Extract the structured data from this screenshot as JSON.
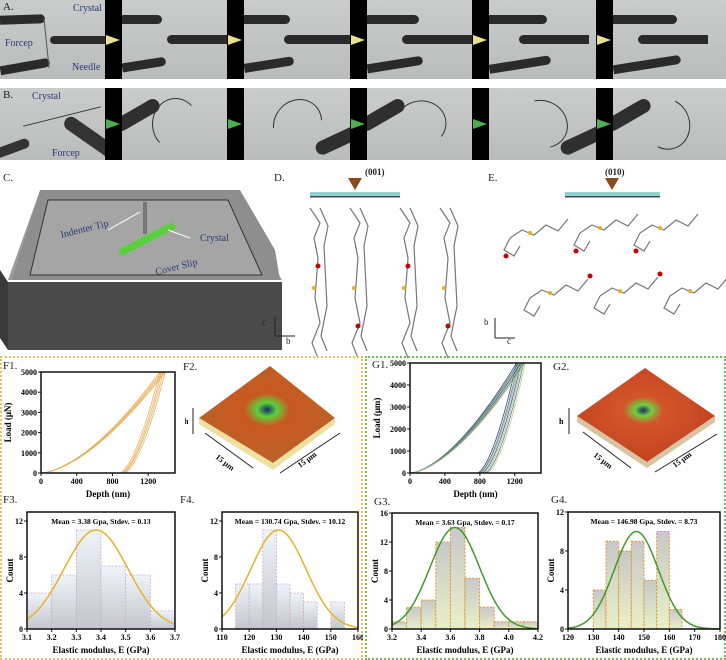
{
  "panels": {
    "A": {
      "label": "A.",
      "crystal": "Crystal",
      "forcep": "Forcep",
      "needle": "Needle",
      "arrow_color": "#e8e08a"
    },
    "B": {
      "label": "B.",
      "crystal": "Crystal",
      "forcep": "Forcep",
      "arrow_color": "#4caf50"
    },
    "C": {
      "label": "C.",
      "indenter_tip": "Indenter Tip",
      "crystal": "Crystal",
      "cover_slip": "Cover Slip"
    },
    "D": {
      "label": "D.",
      "face": "(001)",
      "axis1": "c",
      "axis2": "b"
    },
    "E": {
      "label": "E.",
      "face": "(010)",
      "axis1": "b",
      "axis2": "c"
    },
    "F1": {
      "label": "F1."
    },
    "F2": {
      "label": "F2.",
      "h": "h",
      "dim1": "15 μm",
      "dim2": "15 μm"
    },
    "F3": {
      "label": "F3."
    },
    "F4": {
      "label": "F4."
    },
    "G1": {
      "label": "G1."
    },
    "G2": {
      "label": "G2.",
      "h": "h",
      "dim1": "15 μm",
      "dim2": "15 μm"
    },
    "G3": {
      "label": "G3."
    },
    "G4": {
      "label": "G4."
    }
  },
  "colors": {
    "F_border": "#e6c35a",
    "G_border": "#6cbf4a",
    "F_fit": "#e6b422",
    "G_fit": "#3f9a2a",
    "indenter": "#8b4a1c",
    "face_bar": "#8fd3cf"
  },
  "chart_data": [
    {
      "id": "F1",
      "type": "line",
      "xlabel": "Depth (nm)",
      "ylabel": "Load (μN)",
      "xlim": [
        0,
        1500
      ],
      "ylim": [
        0,
        5000
      ],
      "xticks": [
        0,
        400,
        800,
        1200
      ],
      "yticks": [
        0,
        1000,
        2000,
        3000,
        4000,
        5000
      ],
      "series": [
        {
          "max_depth": 1330,
          "residual_depth": 880
        },
        {
          "max_depth": 1350,
          "residual_depth": 900
        },
        {
          "max_depth": 1370,
          "residual_depth": 910
        },
        {
          "max_depth": 1390,
          "residual_depth": 930
        }
      ],
      "color": "#e8a950"
    },
    {
      "id": "G1",
      "type": "line",
      "xlabel": "Depth (nm)",
      "ylabel": "Load (μm)",
      "xlim": [
        0,
        1500
      ],
      "ylim": [
        0,
        5000
      ],
      "xticks": [
        0,
        400,
        800,
        1200
      ],
      "yticks": [
        0,
        1000,
        2000,
        3000,
        4000,
        5000
      ],
      "series": [
        {
          "max_depth": 1220,
          "residual_depth": 770
        },
        {
          "max_depth": 1240,
          "residual_depth": 790
        },
        {
          "max_depth": 1255,
          "residual_depth": 800
        },
        {
          "max_depth": 1270,
          "residual_depth": 820
        },
        {
          "max_depth": 1285,
          "residual_depth": 840
        },
        {
          "max_depth": 1300,
          "residual_depth": 860
        },
        {
          "max_depth": 1320,
          "residual_depth": 880
        }
      ],
      "color": "#3a4a5a"
    },
    {
      "id": "F3",
      "type": "bar",
      "title": "Mean = 3.38 Gpa, Stdev. = 0.13",
      "xlabel": "Elastic modulus, E (GPa)",
      "ylabel": "Count",
      "xlim": [
        3.1,
        3.7
      ],
      "ylim": [
        0,
        13
      ],
      "xticks": [
        "3.1",
        "3.2",
        "3.3",
        "3.4",
        "3.5",
        "3.6",
        "3.7"
      ],
      "yticks": [
        0,
        4,
        8,
        12
      ],
      "bins": [
        [
          3.1,
          3.2,
          4
        ],
        [
          3.2,
          3.3,
          6
        ],
        [
          3.3,
          3.4,
          11
        ],
        [
          3.4,
          3.5,
          7
        ],
        [
          3.5,
          3.6,
          6
        ],
        [
          3.6,
          3.7,
          2
        ]
      ],
      "fit": {
        "mean": 3.38,
        "stdev": 0.13,
        "peak": 11
      }
    },
    {
      "id": "F4",
      "type": "bar",
      "title": "Mean = 130.74 Gpa, Stdev. = 10.12",
      "xlabel": "Elastic modulus, E (GPa)",
      "ylabel": "Count",
      "xlim": [
        110,
        160
      ],
      "ylim": [
        0,
        13
      ],
      "xticks": [
        "110",
        "120",
        "130",
        "140",
        "150",
        "160"
      ],
      "yticks": [
        0,
        4,
        8,
        12
      ],
      "bins": [
        [
          115,
          120,
          5
        ],
        [
          120,
          125,
          5
        ],
        [
          125,
          130,
          11
        ],
        [
          130,
          135,
          5
        ],
        [
          135,
          140,
          4
        ],
        [
          140,
          145,
          3
        ],
        [
          150,
          155,
          3
        ]
      ],
      "fit": {
        "mean": 130.74,
        "stdev": 10.12,
        "peak": 11
      }
    },
    {
      "id": "G3",
      "type": "bar",
      "title": "Mean = 3.63 Gpa, Stdev. = 0.17",
      "xlabel": "Elastic modulus, E (GPa)",
      "ylabel": "Count",
      "xlim": [
        3.2,
        4.2
      ],
      "ylim": [
        0,
        16
      ],
      "xticks": [
        "3.2",
        "3.4",
        "3.6",
        "3.8",
        "4.0",
        "4.2"
      ],
      "yticks": [
        0,
        4,
        8,
        12,
        16
      ],
      "bins": [
        [
          3.2,
          3.3,
          1
        ],
        [
          3.3,
          3.4,
          3
        ],
        [
          3.4,
          3.5,
          4
        ],
        [
          3.5,
          3.6,
          12
        ],
        [
          3.6,
          3.7,
          14
        ],
        [
          3.7,
          3.8,
          7
        ],
        [
          3.8,
          3.9,
          3
        ],
        [
          3.9,
          4.0,
          1
        ],
        [
          4.0,
          4.1,
          1
        ],
        [
          4.1,
          4.2,
          1
        ]
      ],
      "fit": {
        "mean": 3.63,
        "stdev": 0.17,
        "peak": 14
      }
    },
    {
      "id": "G4",
      "type": "bar",
      "title": "Mean = 146.98 Gpa, Stdev. = 8.73",
      "xlabel": "Elastic modulus, E (GPa)",
      "ylabel": "Count",
      "xlim": [
        120,
        180
      ],
      "ylim": [
        0,
        12
      ],
      "xticks": [
        "120",
        "130",
        "140",
        "150",
        "160",
        "170",
        "180"
      ],
      "yticks": [
        0,
        4,
        8,
        12
      ],
      "bins": [
        [
          130,
          135,
          4
        ],
        [
          135,
          140,
          9
        ],
        [
          140,
          145,
          8
        ],
        [
          145,
          150,
          9
        ],
        [
          150,
          155,
          5
        ],
        [
          155,
          160,
          10
        ],
        [
          160,
          165,
          2
        ]
      ],
      "fit": {
        "mean": 146.98,
        "stdev": 8.73,
        "peak": 10
      }
    }
  ]
}
